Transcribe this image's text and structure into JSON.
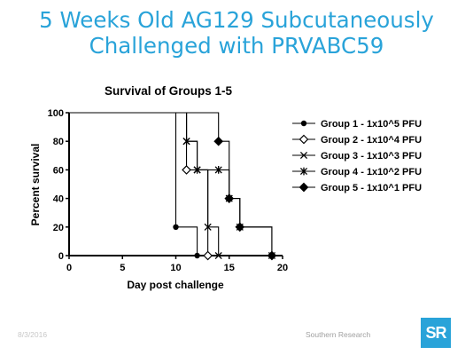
{
  "slide": {
    "title_line1": "5 Weeks Old AG129 Subcutaneously",
    "title_line2": "Challenged with PRVABC59",
    "footer_date": "8/3/2016",
    "footer_org": "Southern Research",
    "logo_text": "SR",
    "accent_color": "#29a3d9"
  },
  "chart_data": {
    "type": "line",
    "step": true,
    "title": "Survival of Groups 1-5",
    "xlabel": "Day post challenge",
    "ylabel": "Percent survival",
    "xlim": [
      0,
      20
    ],
    "ylim": [
      0,
      100
    ],
    "xticks": [
      0,
      5,
      10,
      15,
      20
    ],
    "yticks": [
      0,
      20,
      40,
      60,
      80,
      100
    ],
    "grid": false,
    "legend_position": "right",
    "series": [
      {
        "name": "Group 1 - 1x10^5 PFU",
        "marker": "circle",
        "x": [
          0,
          10,
          10,
          12,
          12
        ],
        "y": [
          100,
          100,
          20,
          20,
          0
        ]
      },
      {
        "name": "Group 2 - 1x10^4 PFU",
        "marker": "diamond-open",
        "x": [
          0,
          11,
          11,
          13,
          13
        ],
        "y": [
          100,
          100,
          60,
          60,
          0
        ]
      },
      {
        "name": "Group 3 - 1x10^3 PFU",
        "marker": "x",
        "x": [
          0,
          11,
          11,
          12,
          12,
          13,
          13,
          14,
          14
        ],
        "y": [
          100,
          100,
          80,
          80,
          60,
          60,
          20,
          20,
          0
        ]
      },
      {
        "name": "Group 4 - 1x10^2 PFU",
        "marker": "asterisk",
        "x": [
          0,
          11,
          11,
          12,
          12,
          14,
          14,
          15,
          15,
          16,
          16,
          19,
          19
        ],
        "y": [
          100,
          100,
          80,
          80,
          60,
          60,
          60,
          60,
          40,
          40,
          20,
          20,
          0
        ]
      },
      {
        "name": "Group 5 - 1x10^1 PFU",
        "marker": "diamond",
        "x": [
          0,
          14,
          14,
          15,
          15,
          16,
          16,
          19,
          19
        ],
        "y": [
          100,
          100,
          80,
          80,
          40,
          40,
          20,
          20,
          0
        ]
      }
    ]
  }
}
